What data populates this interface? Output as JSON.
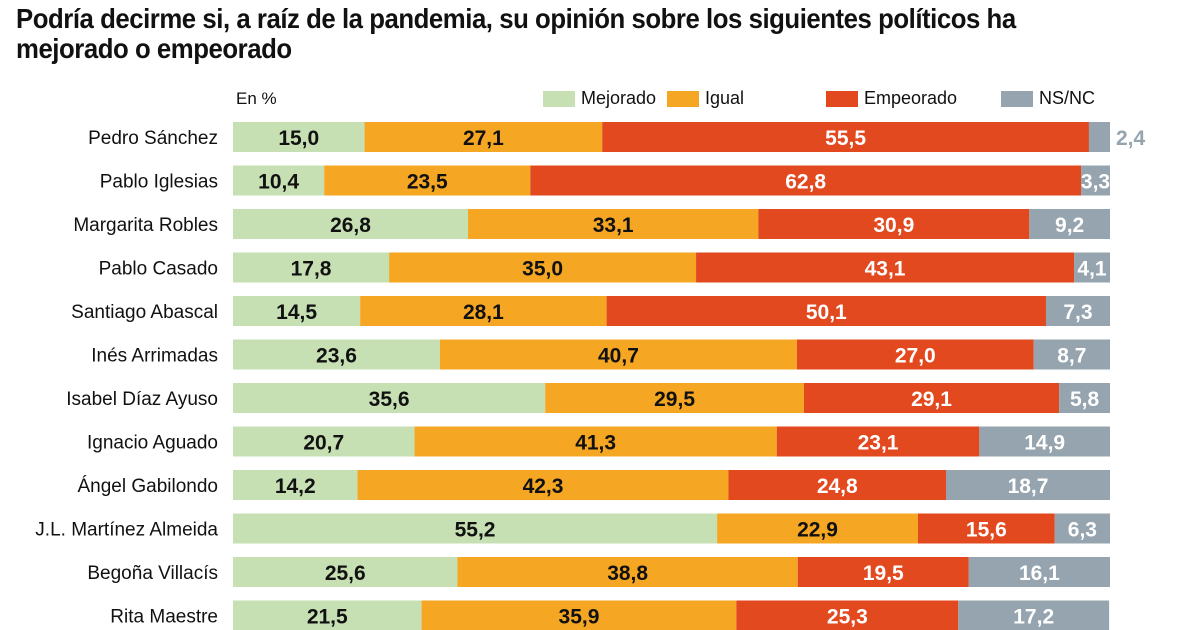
{
  "chart_data": {
    "type": "bar",
    "orientation": "horizontal",
    "stacked": true,
    "title": "Podría decirme si, a raíz de la pandemia, su opinión sobre los siguientes políticos ha mejorado o empeorado",
    "unit_label": "En %",
    "xlim": [
      0,
      100
    ],
    "grid": false,
    "legend_position": "top",
    "categories": [
      "Pedro Sánchez",
      "Pablo Iglesias",
      "Margarita Robles",
      "Pablo Casado",
      "Santiago Abascal",
      "Inés Arrimadas",
      "Isabel Díaz Ayuso",
      "Ignacio Aguado",
      "Ángel Gabilondo",
      "J.L. Martínez Almeida",
      "Begoña Villacís",
      "Rita Maestre"
    ],
    "series": [
      {
        "name": "Mejorado",
        "color": "#c6e0b4",
        "label_color": "#111111",
        "values": [
          15.0,
          10.4,
          26.8,
          17.8,
          14.5,
          23.6,
          35.6,
          20.7,
          14.2,
          55.2,
          25.6,
          21.5
        ]
      },
      {
        "name": "Igual",
        "color": "#f5a623",
        "label_color": "#111111",
        "values": [
          27.1,
          23.5,
          33.1,
          35.0,
          28.1,
          40.7,
          29.5,
          41.3,
          42.3,
          22.9,
          38.8,
          35.9
        ]
      },
      {
        "name": "Empeorado",
        "color": "#e2491f",
        "label_color": "#ffffff",
        "values": [
          55.5,
          62.8,
          30.9,
          43.1,
          50.1,
          27.0,
          29.1,
          23.1,
          24.8,
          15.6,
          19.5,
          25.3
        ]
      },
      {
        "name": "NS/NC",
        "color": "#95a4ae",
        "label_color": "#ffffff",
        "values": [
          2.4,
          3.3,
          9.2,
          4.1,
          7.3,
          8.7,
          5.8,
          14.9,
          18.7,
          6.3,
          16.1,
          17.2
        ]
      }
    ]
  }
}
